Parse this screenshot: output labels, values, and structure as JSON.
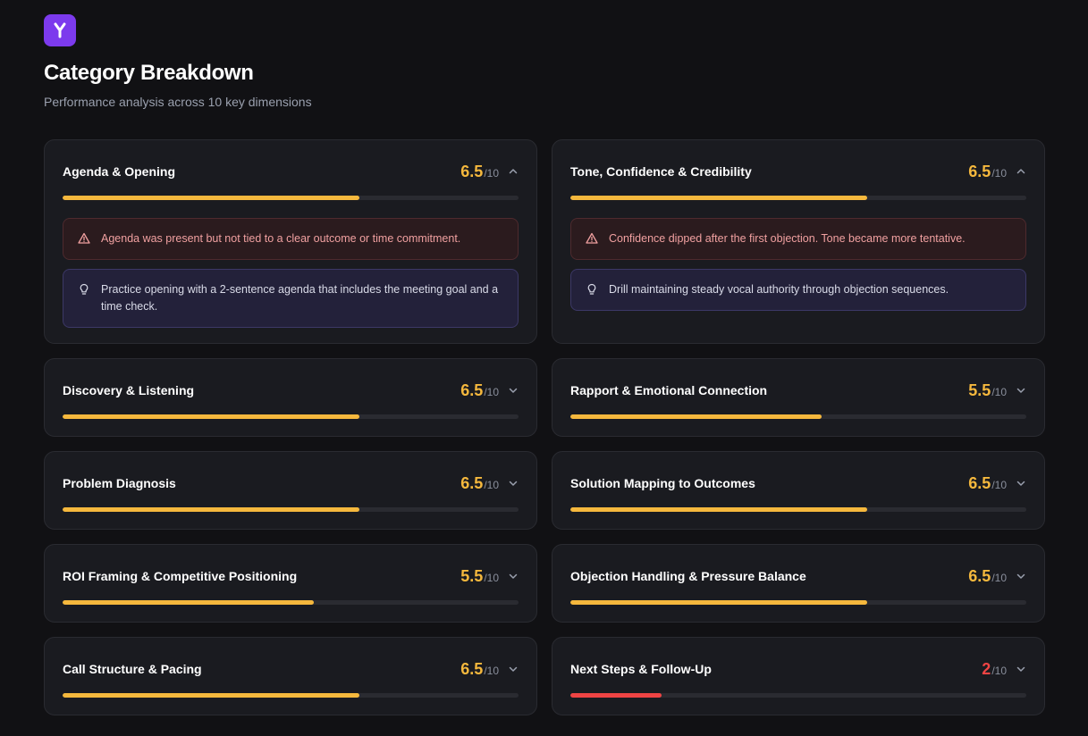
{
  "header": {
    "title": "Category Breakdown",
    "subtitle": "Performance analysis across 10 key dimensions"
  },
  "colors": {
    "accent": "#7c3aed",
    "score_yellow": "#f5b83d",
    "score_red": "#ef4444",
    "bar_track": "#2a2b31"
  },
  "denominator": "/10",
  "categories": [
    {
      "name": "Agenda & Opening",
      "score": "6.5",
      "expanded": true,
      "warning": "Agenda was present but not tied to a clear outcome or time commitment.",
      "tip": "Practice opening with a 2-sentence agenda that includes the meeting goal and a time check."
    },
    {
      "name": "Tone, Confidence & Credibility",
      "score": "6.5",
      "expanded": true,
      "warning": "Confidence dipped after the first objection. Tone became more tentative.",
      "tip": "Drill maintaining steady vocal authority through objection sequences."
    },
    {
      "name": "Discovery & Listening",
      "score": "6.5"
    },
    {
      "name": "Rapport & Emotional Connection",
      "score": "5.5"
    },
    {
      "name": "Problem Diagnosis",
      "score": "6.5"
    },
    {
      "name": "Solution Mapping to Outcomes",
      "score": "6.5"
    },
    {
      "name": "ROI Framing & Competitive Positioning",
      "score": "5.5"
    },
    {
      "name": "Objection Handling & Pressure Balance",
      "score": "6.5"
    },
    {
      "name": "Call Structure & Pacing",
      "score": "6.5"
    },
    {
      "name": "Next Steps & Follow-Up",
      "score": "2"
    }
  ]
}
